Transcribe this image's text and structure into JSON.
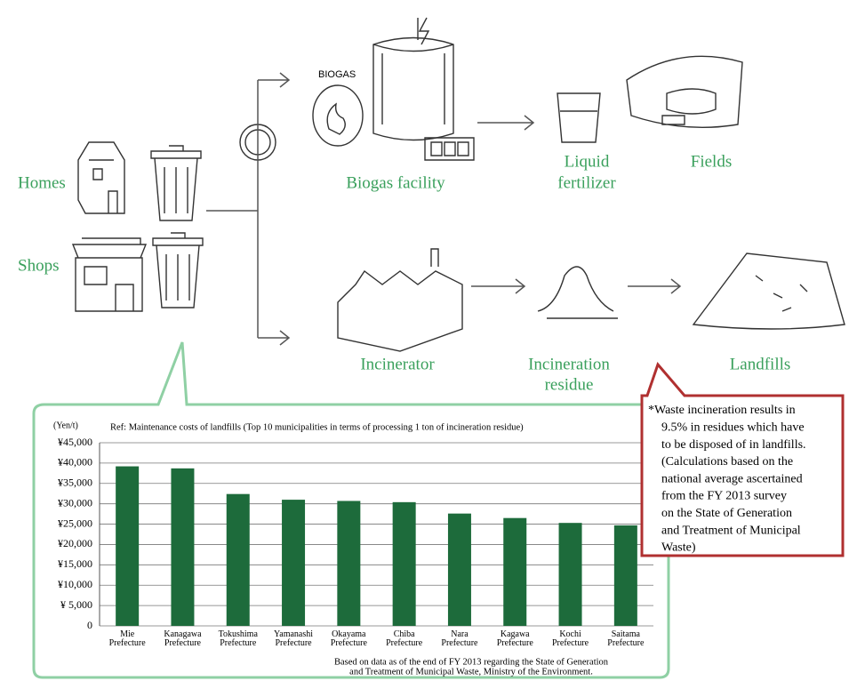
{
  "diagram": {
    "homes": "Homes",
    "shops": "Shops",
    "biogas_sign": "BIOGAS",
    "biogas_facility": "Biogas facility",
    "liquid_fertilizer": [
      "Liquid",
      "fertilizer"
    ],
    "fields": "Fields",
    "incinerator": "Incinerator",
    "incineration_residue": [
      "Incineration",
      "residue"
    ],
    "landfills": "Landfills",
    "note": [
      "*Waste incineration results in",
      "9.5% in residues which have",
      "to be disposed of in landfills.",
      "(Calculations based on the",
      "national average ascertained",
      "from the FY 2013 survey",
      "on the State of Generation",
      "and Treatment of Municipal",
      "Waste)"
    ]
  },
  "chart_data": {
    "type": "bar",
    "unit": "(Yen/t)",
    "title": "Ref: Maintenance costs of landfills (Top 10 municipalities in terms of processing 1 ton of incineration residue)",
    "source": [
      "Based on data as of the end of FY 2013 regarding the State of Generation",
      "and Treatment of Municipal Waste, Ministry of the Environment."
    ],
    "categories": [
      "Mie Prefecture",
      "Kanagawa Prefecture",
      "Tokushima Prefecture",
      "Yamanashi Prefecture",
      "Okayama Prefecture",
      "Chiba Prefecture",
      "Nara Prefecture",
      "Kagawa Prefecture",
      "Kochi Prefecture",
      "Saitama Prefecture"
    ],
    "values": [
      39200,
      38700,
      32400,
      31000,
      30700,
      30400,
      27600,
      26500,
      25300,
      24700
    ],
    "color": "#1d6b3b",
    "ylim": [
      0,
      45000
    ],
    "yticks": [
      0,
      {
        "value": 5000,
        "label": "¥ 5,000"
      },
      {
        "value": 10000,
        "label": "¥10,000"
      },
      {
        "value": 15000,
        "label": "¥15,000"
      },
      {
        "value": 20000,
        "label": "¥20,000"
      },
      {
        "value": 25000,
        "label": "¥25,000"
      },
      {
        "value": 30000,
        "label": "¥30,000"
      },
      {
        "value": 35000,
        "label": "¥35,000"
      },
      {
        "value": 40000,
        "label": "¥40,000"
      },
      {
        "value": 45000,
        "label": "¥45,000"
      }
    ],
    "grid": true
  }
}
